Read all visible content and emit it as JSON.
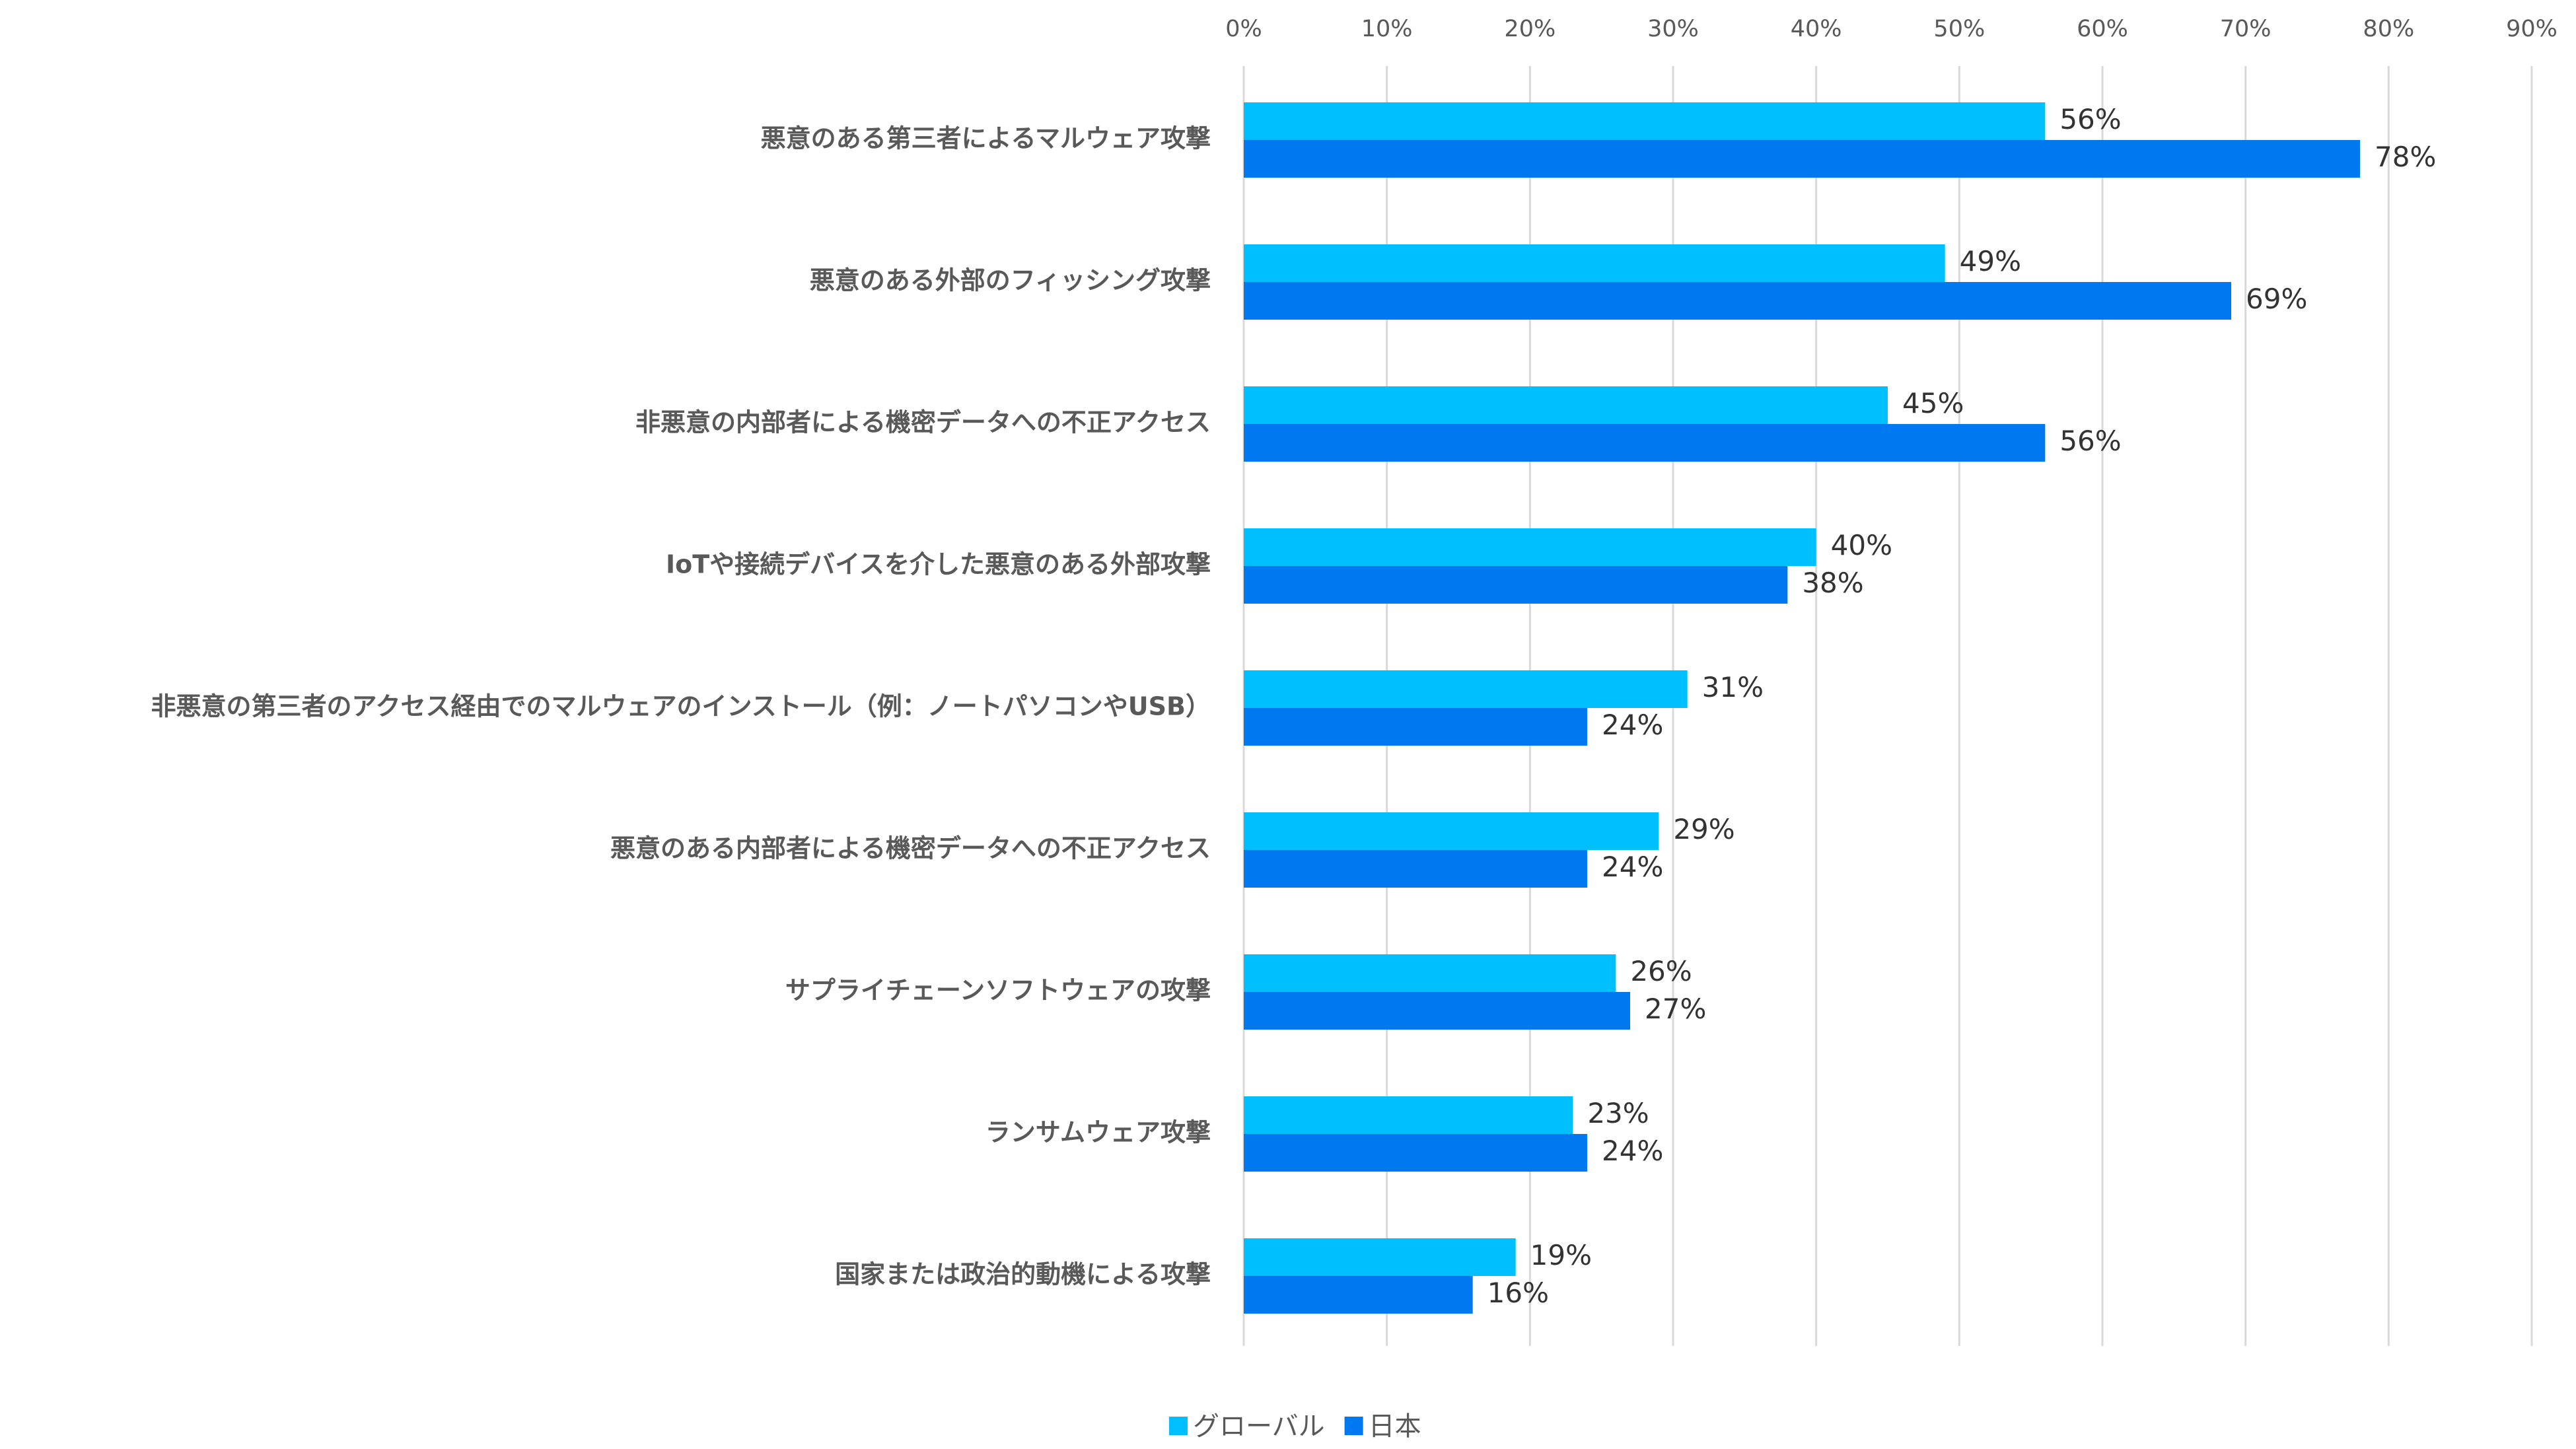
{
  "chart_data": {
    "type": "bar",
    "orientation": "horizontal",
    "categories": [
      "悪意のある第三者によるマルウェア攻撃",
      "悪意のある外部のフィッシング攻撃",
      "非悪意の内部者による機密データへの不正アクセス",
      "IoTや接続デバイスを介した悪意のある外部攻撃",
      "非悪意の第三者のアクセス経由でのマルウェアのインストール（例：ノートパソコンやUSB）",
      "悪意のある内部者による機密データへの不正アクセス",
      "サプライチェーンソフトウェアの攻撃",
      "ランサムウェア攻撃",
      "国家または政治的動機による攻撃"
    ],
    "series": [
      {
        "name": "グローバル",
        "color": "#00bfff",
        "values": [
          56,
          49,
          45,
          40,
          31,
          29,
          26,
          23,
          19
        ],
        "value_labels": [
          "56%",
          "49%",
          "45%",
          "40%",
          "31%",
          "29%",
          "26%",
          "23%",
          "19%"
        ]
      },
      {
        "name": "日本",
        "color": "#0078f0",
        "values": [
          78,
          69,
          56,
          38,
          24,
          24,
          27,
          24,
          16
        ],
        "value_labels": [
          "78%",
          "69%",
          "56%",
          "38%",
          "24%",
          "24%",
          "27%",
          "24%",
          "16%"
        ]
      }
    ],
    "xlim": [
      0,
      90
    ],
    "xticks": [
      {
        "value": 0,
        "label": "0%"
      },
      {
        "value": 10,
        "label": "10%"
      },
      {
        "value": 20,
        "label": "20%"
      },
      {
        "value": 30,
        "label": "30%"
      },
      {
        "value": 40,
        "label": "40%"
      },
      {
        "value": 50,
        "label": "50%"
      },
      {
        "value": 60,
        "label": "60%"
      },
      {
        "value": 70,
        "label": "70%"
      },
      {
        "value": 80,
        "label": "80%"
      },
      {
        "value": 90,
        "label": "90%"
      }
    ],
    "grid": true,
    "legend": "bottom"
  }
}
